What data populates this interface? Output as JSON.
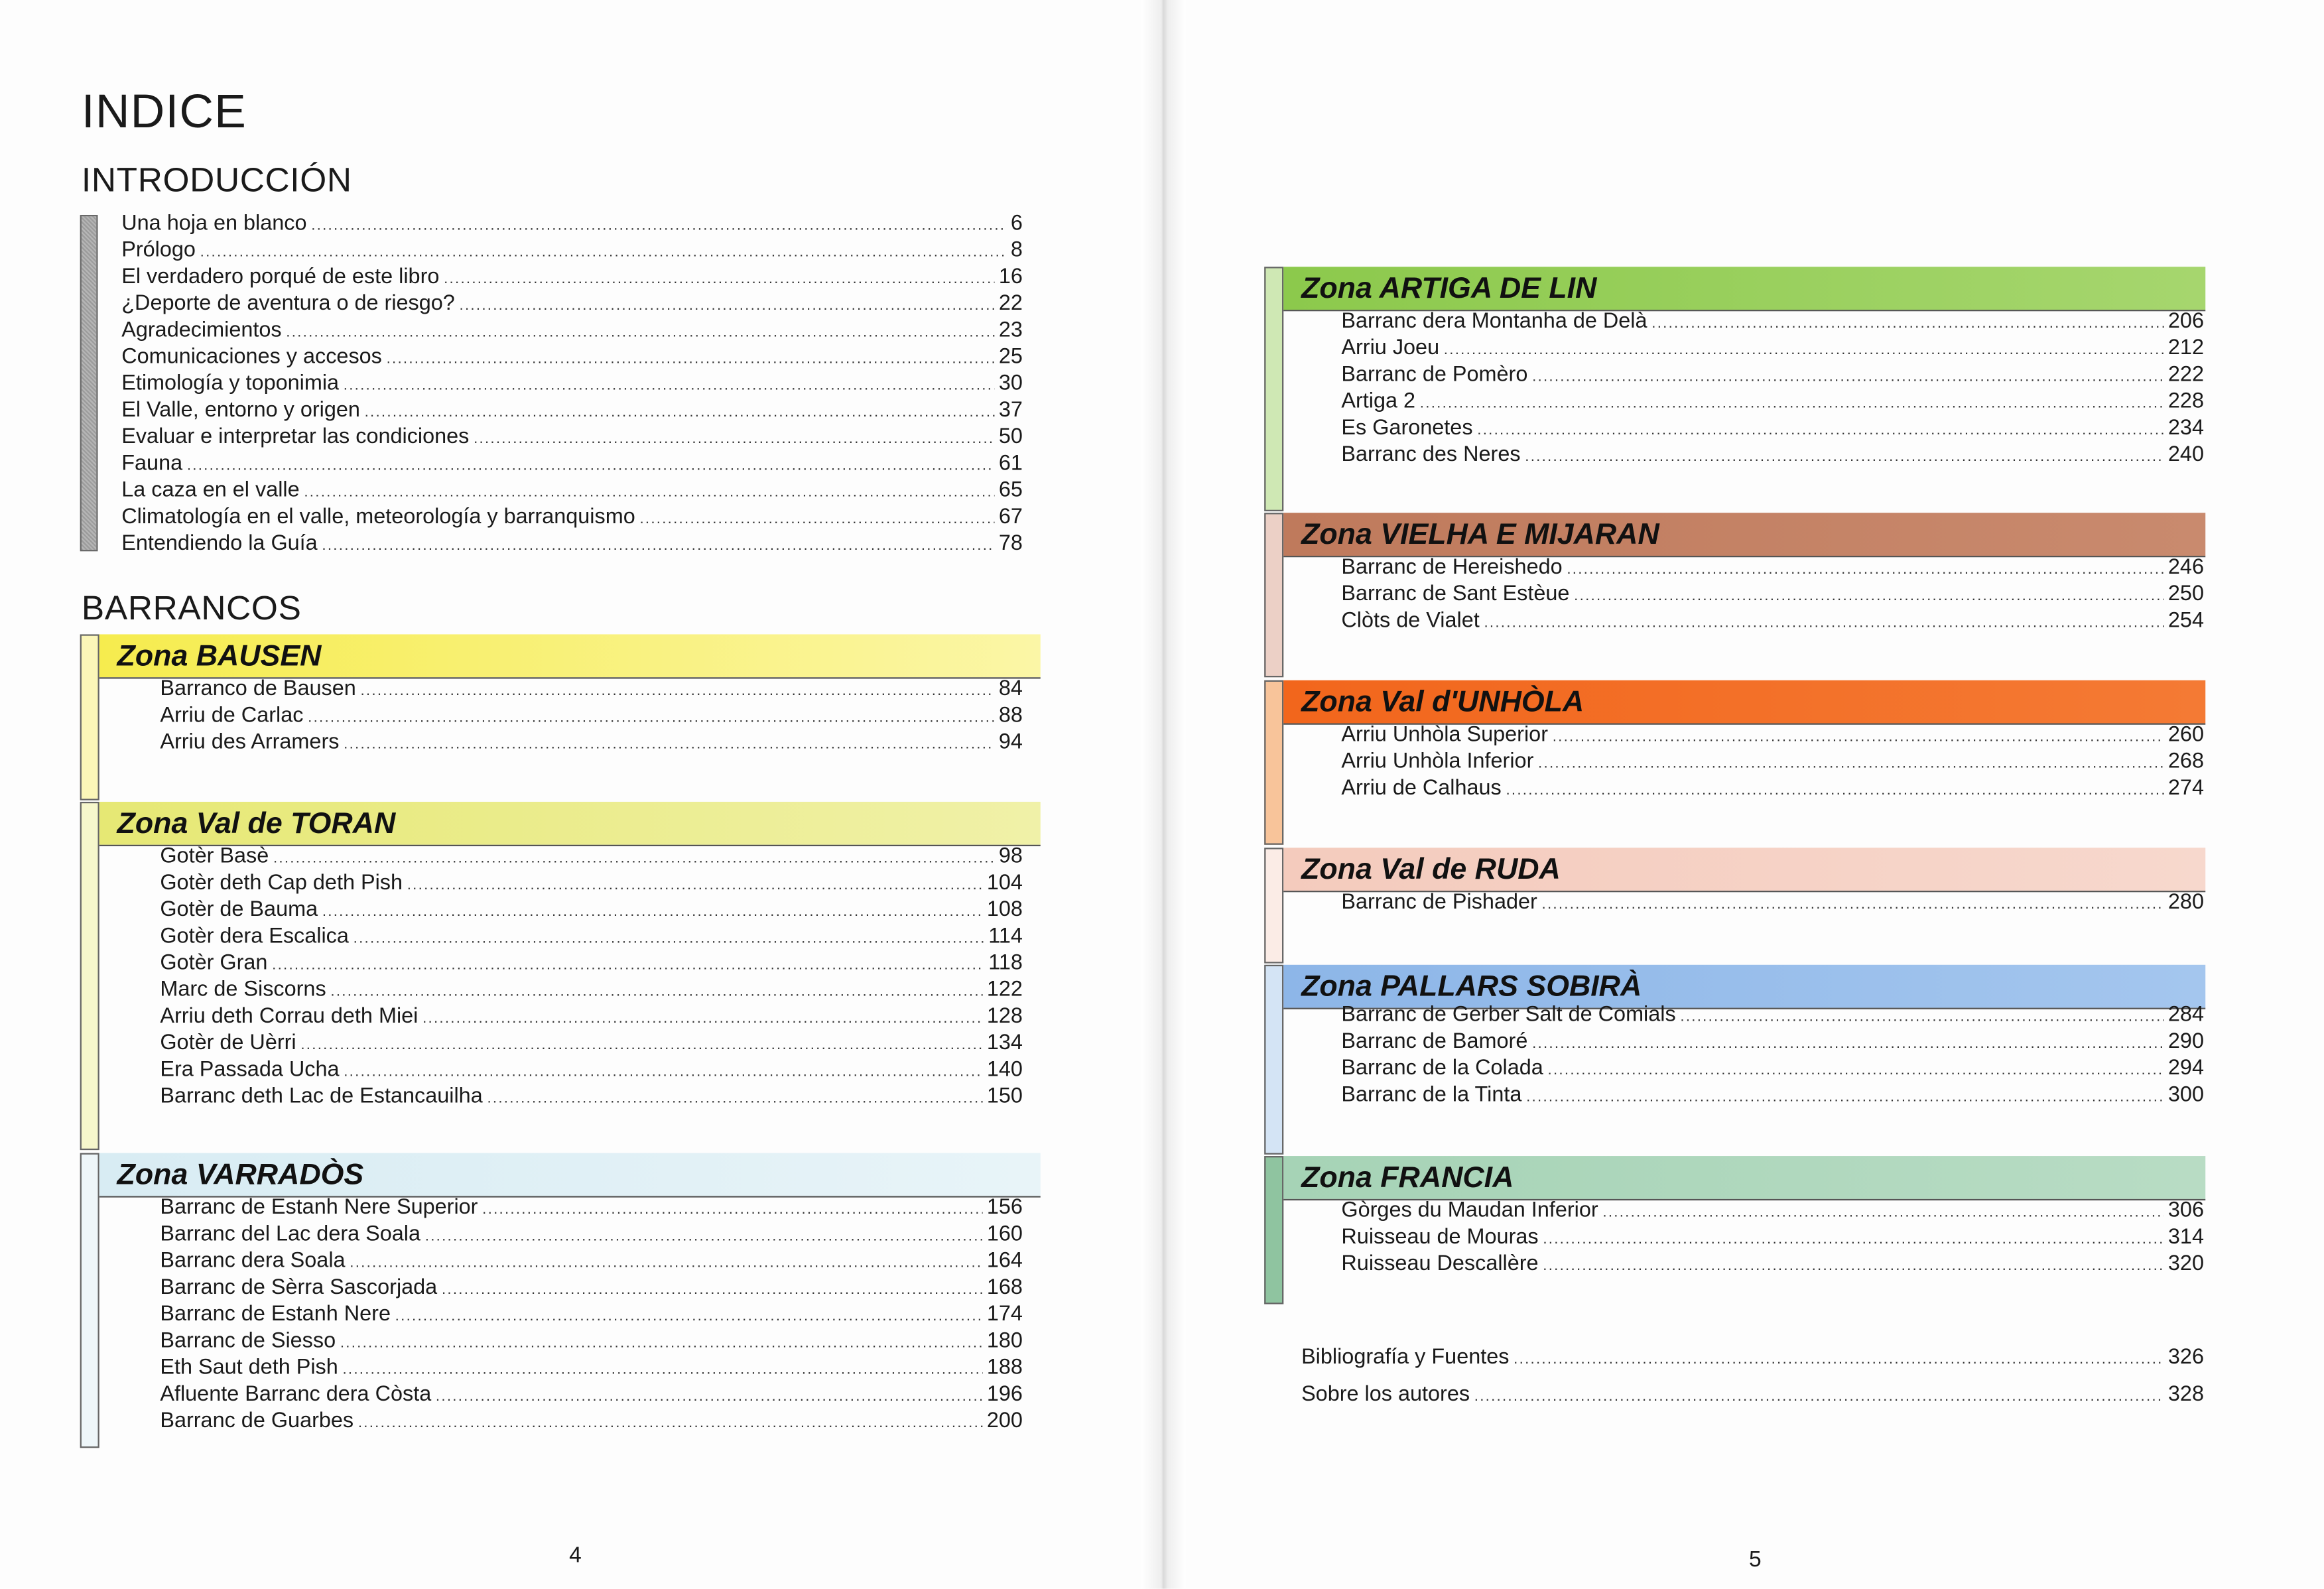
{
  "left_page": {
    "title": "INDICE",
    "intro_heading": "INTRODUCCIÓN",
    "intro_bar_color": "#a6a6a6",
    "intro_entries": [
      {
        "title": "Una hoja en blanco",
        "page": "6"
      },
      {
        "title": "Prólogo",
        "page": "8"
      },
      {
        "title": "El verdadero porqué de este libro",
        "page": "16"
      },
      {
        "title": "¿Deporte de aventura o de riesgo?",
        "page": "22"
      },
      {
        "title": "Agradecimientos",
        "page": "23"
      },
      {
        "title": "Comunicaciones y accesos",
        "page": "25"
      },
      {
        "title": "Etimología y toponimia",
        "page": "30"
      },
      {
        "title": "El Valle, entorno y origen",
        "page": "37"
      },
      {
        "title": "Evaluar e interpretar las condiciones",
        "page": "50"
      },
      {
        "title": "Fauna",
        "page": "61"
      },
      {
        "title": "La caza en el valle",
        "page": "65"
      },
      {
        "title": "Climatología en el valle, meteorología y barranquismo",
        "page": "67"
      },
      {
        "title": "Entendiendo la Guía",
        "page": "78"
      }
    ],
    "barrancos_heading": "BARRANCOS",
    "zones": [
      {
        "name": "Zona BAUSEN",
        "color": "#f6ec4e",
        "color_light": "#fbf6a6",
        "bar_color": "#fbf6b8",
        "entries": [
          {
            "title": "Barranco de Bausen",
            "page": "84"
          },
          {
            "title": "Arriu de Carlac",
            "page": "88"
          },
          {
            "title": "Arriu des Arramers",
            "page": "94"
          }
        ]
      },
      {
        "name": "Zona Val de TORAN",
        "color": "#e6e874",
        "color_light": "#f0f1a8",
        "bar_color": "#f6f7cc",
        "entries": [
          {
            "title": "Gotèr Basè",
            "page": "98"
          },
          {
            "title": "Gotèr deth Cap deth Pish",
            "page": "104"
          },
          {
            "title": "Gotèr de Bauma",
            "page": "108"
          },
          {
            "title": "Gotèr dera Escalica",
            "page": "114"
          },
          {
            "title": "Gotèr Gran",
            "page": "118"
          },
          {
            "title": "Marc de Siscorns",
            "page": "122"
          },
          {
            "title": "Arriu deth Corrau deth Miei",
            "page": "128"
          },
          {
            "title": "Gotèr de Uèrri",
            "page": "134"
          },
          {
            "title": "Era Passada Ucha",
            "page": "140"
          },
          {
            "title": "Barranc deth Lac de Estancauilha",
            "page": "150"
          }
        ]
      },
      {
        "name": "Zona VARRADÒS",
        "color": "#d8ecf3",
        "color_light": "#e8f4f8",
        "bar_color": "#eef6f9",
        "entries": [
          {
            "title": "Barranc de Estanh Nere Superior",
            "page": "156"
          },
          {
            "title": "Barranc del Lac dera Soala",
            "page": "160"
          },
          {
            "title": "Barranc dera Soala",
            "page": "164"
          },
          {
            "title": "Barranc de Sèrra Sascorjada",
            "page": "168"
          },
          {
            "title": "Barranc de Estanh Nere",
            "page": "174"
          },
          {
            "title": "Barranc de Siesso",
            "page": "180"
          },
          {
            "title": "Eth Saut deth Pish",
            "page": "188"
          },
          {
            "title": "Afluente Barranc dera Còsta",
            "page": "196"
          },
          {
            "title": "Barranc de Guarbes",
            "page": "200"
          }
        ]
      }
    ],
    "page_number": "4"
  },
  "right_page": {
    "zones": [
      {
        "name": "Zona ARTIGA DE LIN",
        "color": "#8cc94c",
        "color_light": "#a6d66e",
        "bar_color": "#cfe8b4",
        "entries": [
          {
            "title": "Barranc dera Montanha de Delà",
            "page": "206"
          },
          {
            "title": "Arriu Joeu",
            "page": "212"
          },
          {
            "title": "Barranc de Pomèro",
            "page": "222"
          },
          {
            "title": "Artiga 2",
            "page": "228"
          },
          {
            "title": "Es Garonetes",
            "page": "234"
          },
          {
            "title": "Barranc des Neres",
            "page": "240"
          }
        ]
      },
      {
        "name": "Zona VIELHA E MIJARAN",
        "color": "#bf7a5c",
        "color_light": "#c98a6e",
        "bar_color": "#ecd0c6",
        "entries": [
          {
            "title": "Barranc de Hereishedo",
            "page": "246"
          },
          {
            "title": "Barranc de Sant Estèue",
            "page": "250"
          },
          {
            "title": "Clòts de Vialet",
            "page": "254"
          }
        ]
      },
      {
        "name": "Zona Val d'UNHÒLA",
        "color": "#f2661c",
        "color_light": "#f47a34",
        "bar_color": "#f8c49a",
        "entries": [
          {
            "title": "Arriu Unhòla Superior",
            "page": "260"
          },
          {
            "title": "Arriu Unhòla Inferior",
            "page": "268"
          },
          {
            "title": "Arriu de Calhaus",
            "page": "274"
          }
        ]
      },
      {
        "name": "Zona Val de RUDA",
        "color": "#f4cbbd",
        "color_light": "#f7d8cd",
        "bar_color": "#fbece6",
        "entries": [
          {
            "title": "Barranc de Pishader",
            "page": "280"
          }
        ]
      },
      {
        "name": "Zona PALLARS SOBIRÀ",
        "color": "#8db6e8",
        "color_light": "#a4c6ee",
        "bar_color": "#d4e4f5",
        "entries": [
          {
            "title": "Barranc de Gerber Salt de Comials",
            "page": "284"
          },
          {
            "title": "Barranc de Bamoré",
            "page": "290"
          },
          {
            "title": "Barranc de la Colada",
            "page": "294"
          },
          {
            "title": "Barranc de la Tinta",
            "page": "300"
          }
        ]
      },
      {
        "name": "Zona FRANCIA",
        "color": "#a6d3b6",
        "color_light": "#b8dcc4",
        "bar_color": "#8fc4a0",
        "entries": [
          {
            "title": "Gòrges du Maudan Inferior",
            "page": "306"
          },
          {
            "title": "Ruisseau de Mouras",
            "page": "314"
          },
          {
            "title": "Ruisseau Descallère",
            "page": "320"
          }
        ]
      }
    ],
    "extra_entries": [
      {
        "title": "Bibliografía y Fuentes",
        "page": "326"
      },
      {
        "title": "Sobre los autores",
        "page": "328"
      }
    ],
    "page_number": "5"
  }
}
